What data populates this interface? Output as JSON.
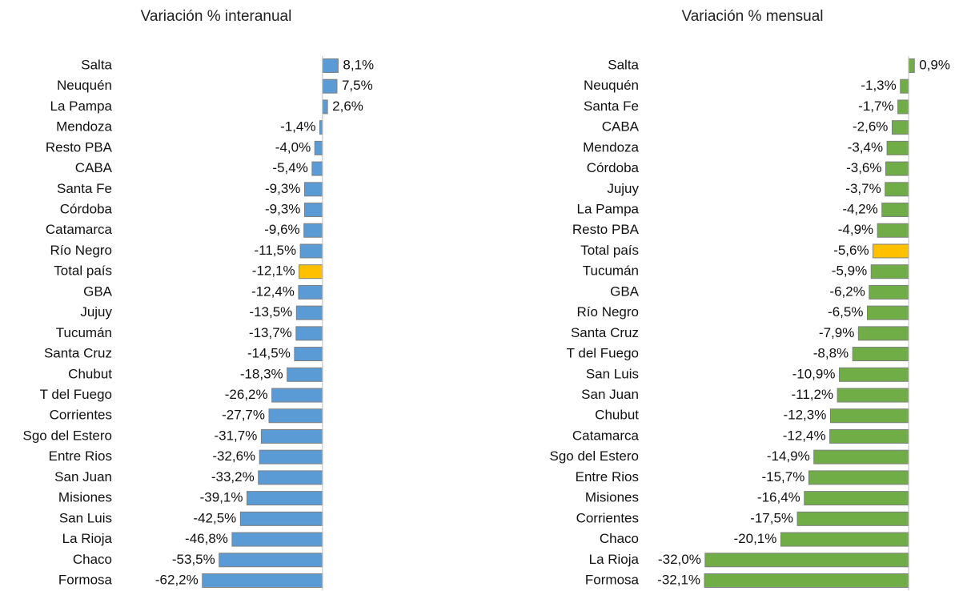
{
  "chart_data": [
    {
      "type": "barh",
      "title": "Variación % interanual",
      "categories": [
        "Salta",
        "Neuquén",
        "La Pampa",
        "Mendoza",
        "Resto PBA",
        "CABA",
        "Santa Fe",
        "Córdoba",
        "Catamarca",
        "Río Negro",
        "Total país",
        "GBA",
        "Jujuy",
        "Tucumán",
        "Santa Cruz",
        "Chubut",
        "T del Fuego",
        "Corrientes",
        "Sgo del Estero",
        "Entre Rios",
        "San Juan",
        "Misiones",
        "San Luis",
        "La Rioja",
        "Chaco",
        "Formosa"
      ],
      "values": [
        8.1,
        7.5,
        2.6,
        -1.4,
        -4.0,
        -5.4,
        -9.3,
        -9.3,
        -9.6,
        -11.5,
        -12.1,
        -12.4,
        -13.5,
        -13.7,
        -14.5,
        -18.3,
        -26.2,
        -27.7,
        -31.7,
        -32.6,
        -33.2,
        -39.1,
        -42.5,
        -46.8,
        -53.5,
        -62.2
      ],
      "value_labels": [
        "8,1%",
        "7,5%",
        "2,6%",
        "-1,4%",
        "-4,0%",
        "-5,4%",
        "-9,3%",
        "-9,3%",
        "-9,6%",
        "-11,5%",
        "-12,1%",
        "-12,4%",
        "-13,5%",
        "-13,7%",
        "-14,5%",
        "-18,3%",
        "-26,2%",
        "-27,7%",
        "-31,7%",
        "-32,6%",
        "-33,2%",
        "-39,1%",
        "-42,5%",
        "-46,8%",
        "-53,5%",
        "-62,2%"
      ],
      "colors": [
        "#5b9bd5",
        "#5b9bd5",
        "#5b9bd5",
        "#5b9bd5",
        "#5b9bd5",
        "#5b9bd5",
        "#5b9bd5",
        "#5b9bd5",
        "#5b9bd5",
        "#5b9bd5",
        "#ffc000",
        "#5b9bd5",
        "#5b9bd5",
        "#5b9bd5",
        "#5b9bd5",
        "#5b9bd5",
        "#5b9bd5",
        "#5b9bd5",
        "#5b9bd5",
        "#5b9bd5",
        "#5b9bd5",
        "#5b9bd5",
        "#5b9bd5",
        "#5b9bd5",
        "#5b9bd5",
        "#5b9bd5"
      ],
      "xlim": [
        -65,
        10
      ]
    },
    {
      "type": "barh",
      "title": "Variación % mensual",
      "categories": [
        "Salta",
        "Neuquén",
        "Santa Fe",
        "CABA",
        "Mendoza",
        "Córdoba",
        "Jujuy",
        "La Pampa",
        "Resto PBA",
        "Total país",
        "Tucumán",
        "GBA",
        "Río Negro",
        "Santa Cruz",
        "T del Fuego",
        "San Luis",
        "San Juan",
        "Chubut",
        "Catamarca",
        "Sgo del Estero",
        "Entre Rios",
        "Misiones",
        "Corrientes",
        "Chaco",
        "La Rioja",
        "Formosa"
      ],
      "values": [
        0.9,
        -1.3,
        -1.7,
        -2.6,
        -3.4,
        -3.6,
        -3.7,
        -4.2,
        -4.9,
        -5.6,
        -5.9,
        -6.2,
        -6.5,
        -7.9,
        -8.8,
        -10.9,
        -11.2,
        -12.3,
        -12.4,
        -14.9,
        -15.7,
        -16.4,
        -17.5,
        -20.1,
        -32.0,
        -32.1
      ],
      "value_labels": [
        "0,9%",
        "-1,3%",
        "-1,7%",
        "-2,6%",
        "-3,4%",
        "-3,6%",
        "-3,7%",
        "-4,2%",
        "-4,9%",
        "-5,6%",
        "-5,9%",
        "-6,2%",
        "-6,5%",
        "-7,9%",
        "-8,8%",
        "-10,9%",
        "-11,2%",
        "-12,3%",
        "-12,4%",
        "-14,9%",
        "-15,7%",
        "-16,4%",
        "-17,5%",
        "-20,1%",
        "-32,0%",
        "-32,1%"
      ],
      "colors": [
        "#70ad47",
        "#70ad47",
        "#70ad47",
        "#70ad47",
        "#70ad47",
        "#70ad47",
        "#70ad47",
        "#70ad47",
        "#70ad47",
        "#ffc000",
        "#70ad47",
        "#70ad47",
        "#70ad47",
        "#70ad47",
        "#70ad47",
        "#70ad47",
        "#70ad47",
        "#70ad47",
        "#70ad47",
        "#70ad47",
        "#70ad47",
        "#70ad47",
        "#70ad47",
        "#70ad47",
        "#70ad47",
        "#70ad47"
      ],
      "xlim": [
        -35,
        2
      ]
    }
  ]
}
